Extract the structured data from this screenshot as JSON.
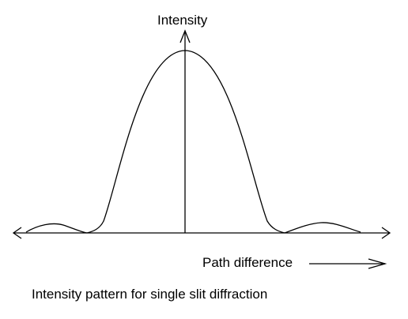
{
  "labels": {
    "y_axis": "Intensity",
    "x_axis": "Path difference",
    "caption": "Intensity pattern for single slit diffraction"
  },
  "colors": {
    "ink": "#000000",
    "background": "#ffffff"
  },
  "curve": {
    "shape": "sinc-squared",
    "central_maximum": 1,
    "secondary_maxima_visible": 2
  }
}
